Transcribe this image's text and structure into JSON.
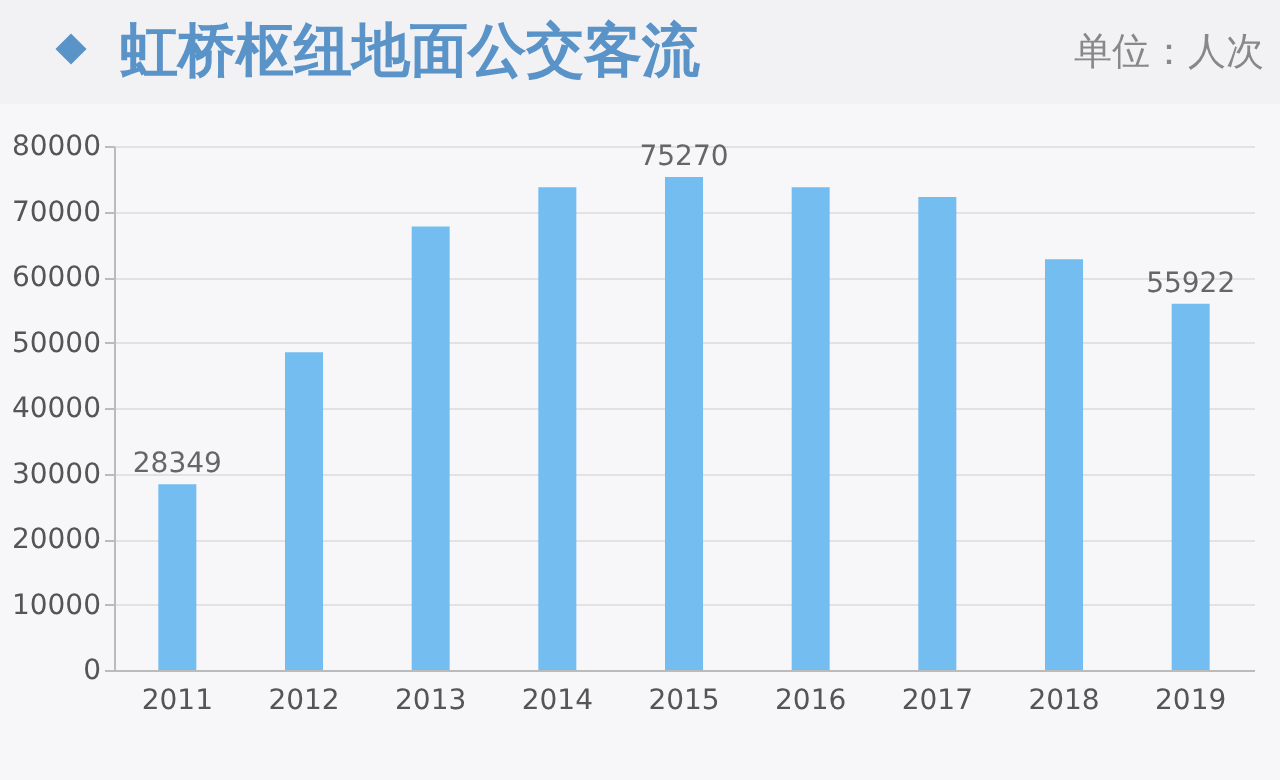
{
  "chart_data": {
    "type": "bar",
    "title": "虹桥枢纽地面公交客流",
    "annotations": [
      "单位：人次"
    ],
    "categories": [
      "2011",
      "2012",
      "2013",
      "2014",
      "2015",
      "2016",
      "2017",
      "2018",
      "2019"
    ],
    "values": [
      28349,
      48500,
      67700,
      73700,
      75270,
      73700,
      72200,
      62700,
      55922
    ],
    "value_labels": [
      "28349",
      null,
      null,
      null,
      "75270",
      null,
      null,
      null,
      "55922"
    ],
    "color": "#74bdf0",
    "ylim": [
      0,
      80000
    ],
    "yticks": [
      0,
      10000,
      20000,
      30000,
      40000,
      50000,
      60000,
      70000,
      80000
    ],
    "grid": "y"
  }
}
